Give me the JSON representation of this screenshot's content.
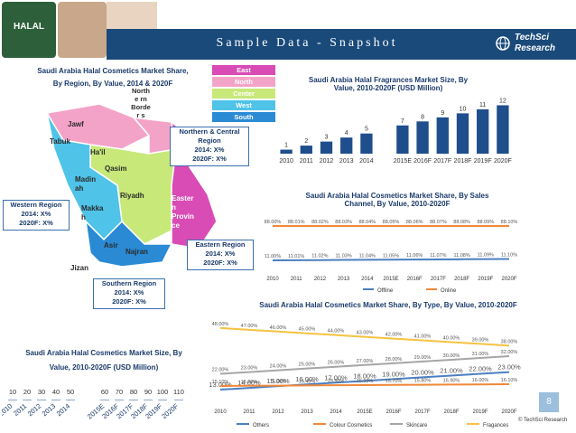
{
  "header": {
    "title": "Sample Data - Snapshot",
    "logo_text": "HALAL",
    "brand_line1": "TechSci",
    "brand_line2": "Research"
  },
  "map_section": {
    "title_line1": "Saudi Arabia Halal Cosmetics Market Share,",
    "title_line2": "By Region, By Value, 2014 & 2020F",
    "regions": {
      "jawf": "Jawf",
      "tabuk": "Tabuk",
      "hail": "Ha'il",
      "north_border": "Northe rn Border s",
      "qasim": "Qasim",
      "madinah": "Madin ah",
      "riyadh": "Riyadh",
      "makkah": "Makka h",
      "eastern": "Easter n Provin ce",
      "asir": "Asir",
      "najran": "Najran",
      "jizan": "Jizan"
    },
    "legend": [
      "East",
      "North",
      "Center",
      "West",
      "South"
    ],
    "legend_colors": [
      "#d94bb5",
      "#f4a3c8",
      "#c8e87a",
      "#4fc3e8",
      "#2a8ad4"
    ],
    "callouts": {
      "north_central": [
        "Northern & Central",
        "Region",
        "2014: X%",
        "2020F: X%"
      ],
      "western": [
        "Western Region",
        "2014: X%",
        "2020F: X%"
      ],
      "eastern": [
        "Eastern Region",
        "2014: X%",
        "2020F:  X%"
      ],
      "southern": [
        "Southern Region",
        "2014: X%",
        "2020F: X%"
      ]
    }
  },
  "page_number": "8",
  "copyright": "© TechSci Research",
  "chart_data": [
    {
      "type": "bar",
      "title": "Saudi Arabia Halal Fragrances Market Size, By Value, 2010-2020F (USD Million)",
      "categories": [
        "2010",
        "2011",
        "2012",
        "2013",
        "2014",
        "2015E",
        "2016F",
        "2017F",
        "2018F",
        "2019F",
        "2020F"
      ],
      "values": [
        1,
        2,
        3,
        4,
        5,
        7,
        8,
        9,
        10,
        11,
        12
      ],
      "color": "#1f4e8c"
    },
    {
      "type": "line",
      "title": "Saudi Arabia Halal Cosmetics Market Share, By Sales Channel, By Value, 2010-2020F",
      "categories": [
        "2010",
        "2011",
        "2012",
        "2013",
        "2014",
        "2015E",
        "2016F",
        "2017F",
        "2018F",
        "2019F",
        "2020F"
      ],
      "series": [
        {
          "name": "Offline",
          "values": [
            11.0,
            11.01,
            11.02,
            11.03,
            11.04,
            11.05,
            11.06,
            11.07,
            11.08,
            11.09,
            11.1
          ],
          "color": "#4a7fc1",
          "labels": [
            "11.00%",
            "11.01%",
            "11.02%",
            "11.03%",
            "11.04%",
            "11.05%",
            "11.06%",
            "11.07%",
            "11.08%",
            "11.09%",
            "11.10%"
          ]
        },
        {
          "name": "Online",
          "values": [
            88.0,
            88.01,
            88.02,
            88.03,
            88.04,
            88.05,
            88.06,
            88.07,
            88.08,
            88.09,
            88.1
          ],
          "color": "#f0883a",
          "labels": [
            "88.00%",
            "88.01%",
            "88.02%",
            "88.03%",
            "88.04%",
            "88.05%",
            "88.06%",
            "88.07%",
            "88.08%",
            "88.09%",
            "88.10%"
          ]
        }
      ]
    },
    {
      "type": "line",
      "title": "Saudi Arabia Halal Cosmetics Market Share, By Type, By Value, 2010-2020F",
      "categories": [
        "2010",
        "2011",
        "2012",
        "2013",
        "2014",
        "2015E",
        "2016F",
        "2017F",
        "2018F",
        "2019F",
        "2020F"
      ],
      "series": [
        {
          "name": "Others",
          "values": [
            13,
            14,
            15,
            16,
            17,
            18,
            19,
            20,
            21,
            22,
            23
          ],
          "color": "#4a7fc1",
          "labels": [
            "13.00%",
            "14.00%",
            "15.00%",
            "16.00%",
            "17.00%",
            "18.00%",
            "19.00%",
            "20.00%",
            "21.00%",
            "22.00%",
            "23.00%"
          ]
        },
        {
          "name": "Colour Cosmetics",
          "values": [
            15.1,
            15.2,
            15.3,
            15.4,
            15.5,
            15.6,
            15.7,
            15.8,
            15.9,
            16.0,
            16.1
          ],
          "color": "#f0883a",
          "labels": [
            "15.10%",
            "15.20%",
            "15.30%",
            "15.40%",
            "15.50%",
            "15.60%",
            "15.70%",
            "15.80%",
            "15.90%",
            "16.00%",
            "16.10%"
          ]
        },
        {
          "name": "Skincare",
          "values": [
            22,
            23,
            24,
            25,
            26,
            27,
            28,
            29,
            30,
            31,
            32
          ],
          "color": "#a6a6a6",
          "labels": [
            "22.00%",
            "23.00%",
            "24.00%",
            "25.00%",
            "26.00%",
            "27.00%",
            "28.00%",
            "29.00%",
            "30.00%",
            "31.00%",
            "32.00%"
          ]
        },
        {
          "name": "Fragances",
          "values": [
            48,
            47,
            46,
            45,
            44,
            43,
            42,
            41,
            40,
            39,
            38
          ],
          "color": "#f5c242",
          "labels": [
            "48.00%",
            "47.00%",
            "46.00%",
            "45.00%",
            "44.00%",
            "43.00%",
            "42.00%",
            "41.00%",
            "40.00%",
            "39.00%",
            "38.00%"
          ]
        }
      ]
    },
    {
      "type": "bar",
      "title": "Saudi Arabia Halal Cosmetics Market Size, By Value, 2010-2020F (USD Million)",
      "categories": [
        "2010",
        "2011",
        "2012",
        "2013",
        "2014",
        "2015E",
        "2016F",
        "2017F",
        "2018F",
        "2019F",
        "2020F"
      ],
      "values": [
        10,
        20,
        30,
        40,
        50,
        60,
        70,
        80,
        90,
        100,
        110
      ],
      "color": "#1f4e8c"
    }
  ]
}
